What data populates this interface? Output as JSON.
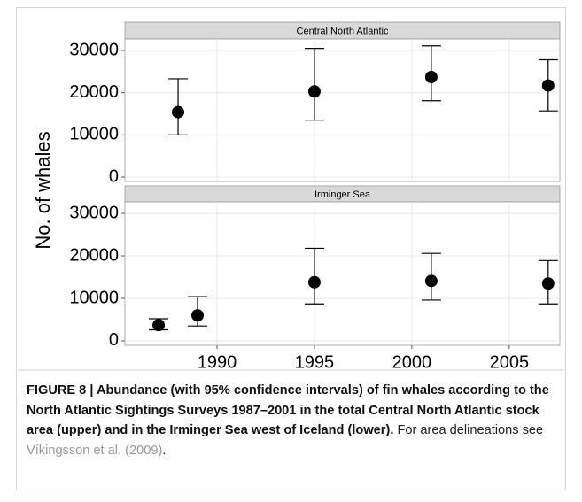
{
  "chart_data": {
    "type": "scatter",
    "y_label": "No. of whales",
    "color": "#000000",
    "grid": true,
    "xlim": [
      1985.27,
      2007.6
    ],
    "xticks": [
      1990,
      1995,
      2000,
      2005
    ],
    "ylim": [
      -1050,
      32730
    ],
    "yticks": [
      0,
      10000,
      20000,
      30000
    ],
    "panels": [
      {
        "title": "Central North Atlantic",
        "x": [
          1988,
          1995,
          2001,
          2007
        ],
        "values": [
          15400,
          20300,
          23700,
          21700
        ],
        "lower": [
          10000,
          13500,
          18100,
          15700
        ],
        "upper": [
          23300,
          30500,
          31100,
          27800
        ]
      },
      {
        "title": "Irminger Sea",
        "x": [
          1987,
          1989,
          1995,
          2001,
          2007
        ],
        "values": [
          3700,
          6000,
          13800,
          14100,
          13500
        ],
        "lower": [
          2600,
          3500,
          8700,
          9600,
          8700
        ],
        "upper": [
          5200,
          10400,
          21800,
          20600,
          18900
        ]
      }
    ]
  },
  "caption": {
    "bold": "FIGURE 8 | Abundance (with 95% confidence intervals) of fin whales according to the North Atlantic Sightings Surveys 1987–2001 in the total Central North Atlantic stock area (upper) and in the Irminger Sea west of Iceland (lower).",
    "text": "For area delineations see",
    "link": "Víkingsson et al. (2009)",
    "end": "."
  }
}
